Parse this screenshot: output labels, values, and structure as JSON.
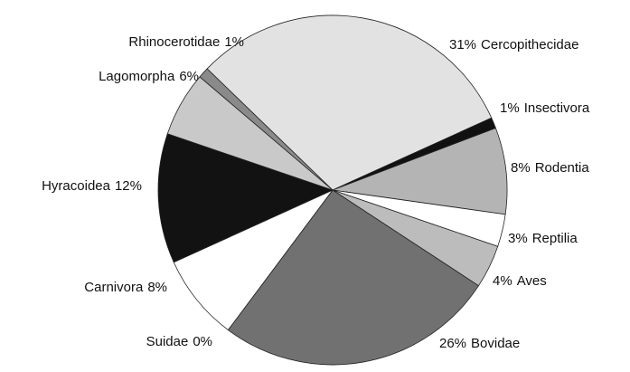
{
  "chart_data": {
    "type": "pie",
    "categories": [
      "Cercopithecidae",
      "Insectivora",
      "Rodentia",
      "Reptilia",
      "Aves",
      "Bovidae",
      "Suidae",
      "Carnivora",
      "Hyracoidea",
      "Lagomorpha",
      "Rhinocerotidae"
    ],
    "values": [
      31,
      1,
      8,
      3,
      4,
      26,
      0,
      8,
      12,
      6,
      1
    ],
    "value_labels": [
      "31%",
      "1%",
      "8%",
      "3%",
      "4%",
      "26%",
      "0%",
      "8%",
      "12%",
      "6%",
      "1%"
    ],
    "colors": [
      "#e2e2e2",
      "#111111",
      "#b4b4b4",
      "#ffffff",
      "#bcbcbc",
      "#717171",
      "#ffffff",
      "#ffffff",
      "#121212",
      "#c9c9c9",
      "#8a8a8a"
    ]
  }
}
